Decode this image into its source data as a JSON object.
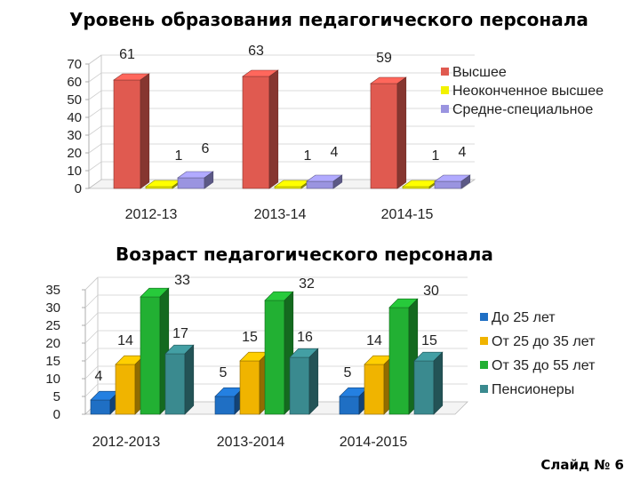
{
  "chart_data": [
    {
      "type": "bar",
      "title": "Уровень образования педагогического персонала",
      "categories": [
        "2012-13",
        "2013-14",
        "2014-15"
      ],
      "yticks": [
        "0",
        "10",
        "20",
        "30",
        "40",
        "50",
        "60",
        "70"
      ],
      "ylim": [
        0,
        70
      ],
      "legend_position": "right",
      "series": [
        {
          "name": "Высшее",
          "values": [
            61,
            63,
            59
          ],
          "color": "#e05a50"
        },
        {
          "name": "Неоконченное высшее",
          "values": [
            1,
            1,
            1
          ],
          "color": "#f2f200"
        },
        {
          "name": "Средне-специальное",
          "values": [
            6,
            4,
            4
          ],
          "color": "#9a94e0"
        }
      ]
    },
    {
      "type": "bar",
      "title": "Возраст педагогического персонала",
      "categories": [
        "2012-2013",
        "2013-2014",
        "2014-2015"
      ],
      "yticks": [
        "0",
        "5",
        "10",
        "15",
        "20",
        "25",
        "30",
        "35"
      ],
      "ylim": [
        0,
        35
      ],
      "legend_position": "right",
      "series": [
        {
          "name": "До 25 лет",
          "values": [
            4,
            5,
            5
          ],
          "color": "#1f6fc4"
        },
        {
          "name": "От 25 до 35 лет",
          "values": [
            14,
            15,
            14
          ],
          "color": "#f0b400"
        },
        {
          "name": "От 35 до 55 лет",
          "values": [
            33,
            32,
            30
          ],
          "color": "#22b033"
        },
        {
          "name": "Пенсионеры",
          "values": [
            17,
            16,
            15
          ],
          "color": "#3a8a8f"
        }
      ]
    }
  ],
  "footer": {
    "slide_label": "Слайд № 6"
  }
}
